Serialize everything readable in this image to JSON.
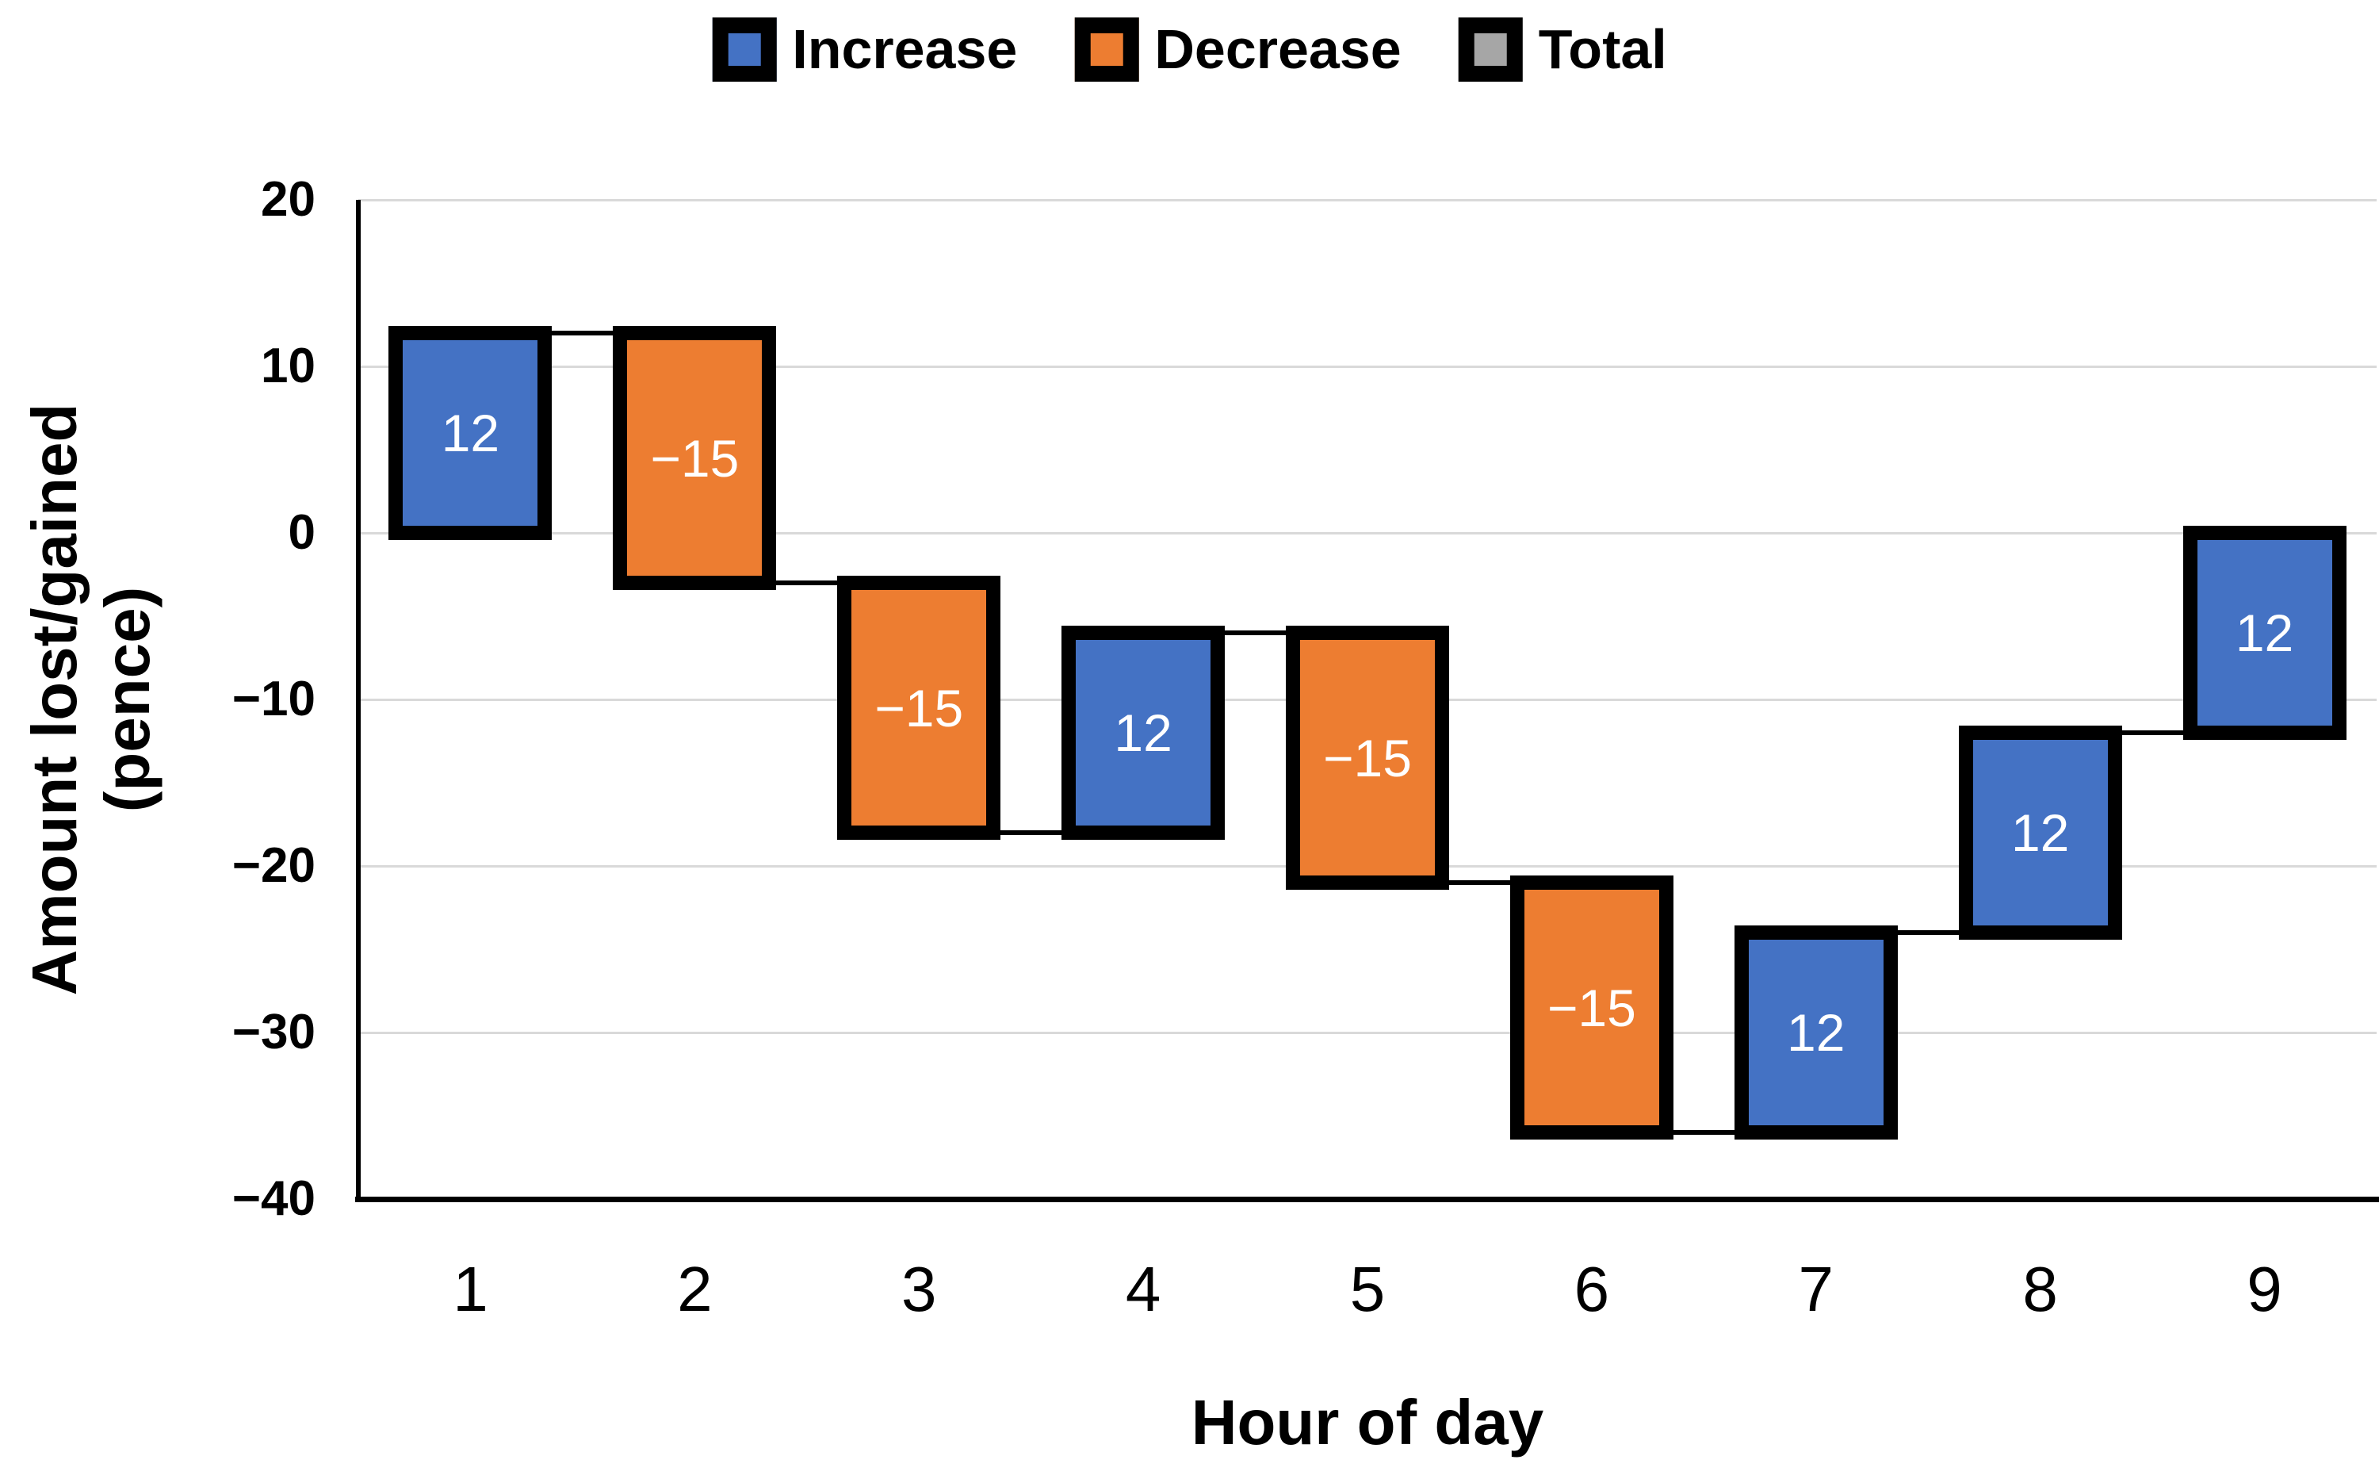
{
  "legend": {
    "items": [
      {
        "key": "increase",
        "label": "Increase",
        "color": "#4472C4"
      },
      {
        "key": "decrease",
        "label": "Decrease",
        "color": "#ED7D31"
      },
      {
        "key": "total",
        "label": "Total",
        "color": "#A6A6A6"
      }
    ]
  },
  "chart_data": {
    "type": "bar",
    "subtype": "waterfall",
    "title": "",
    "xlabel": "Hour of day",
    "ylabel": "Amount lost/gained (pence)",
    "ylabel_lines": [
      "Amount lost/gained",
      "(pence)"
    ],
    "categories": [
      "1",
      "2",
      "3",
      "4",
      "5",
      "6",
      "7",
      "8",
      "9"
    ],
    "values": [
      12,
      -15,
      -15,
      12,
      -15,
      -15,
      12,
      12,
      12
    ],
    "bar_kinds": [
      "increase",
      "decrease",
      "decrease",
      "increase",
      "decrease",
      "decrease",
      "increase",
      "increase",
      "increase"
    ],
    "bar_labels": [
      "12",
      "−15",
      "−15",
      "12",
      "−15",
      "−15",
      "12",
      "12",
      "12"
    ],
    "cumulative_start": [
      0,
      12,
      -3,
      -18,
      -6,
      -21,
      -36,
      -24,
      -12
    ],
    "cumulative_end": [
      12,
      -3,
      -18,
      -6,
      -21,
      -36,
      -24,
      -12,
      0
    ],
    "ylim": [
      -40,
      20
    ],
    "yticks": {
      "values": [
        20,
        10,
        0,
        -10,
        -20,
        -30,
        -40
      ],
      "labels": [
        "20",
        "10",
        "0",
        "−10",
        "−20",
        "−30",
        "−40"
      ]
    },
    "grid": true,
    "legend_position": "top",
    "legend_entries": [
      "Increase",
      "Decrease",
      "Total"
    ],
    "colors": {
      "increase": "#4472C4",
      "decrease": "#ED7D31",
      "total": "#A6A6A6",
      "gridline": "#D9D9D9",
      "axis": "#000000",
      "bar_border": "#000000",
      "bar_label_text": "#FFFFFF",
      "tick_text": "#000000"
    }
  }
}
